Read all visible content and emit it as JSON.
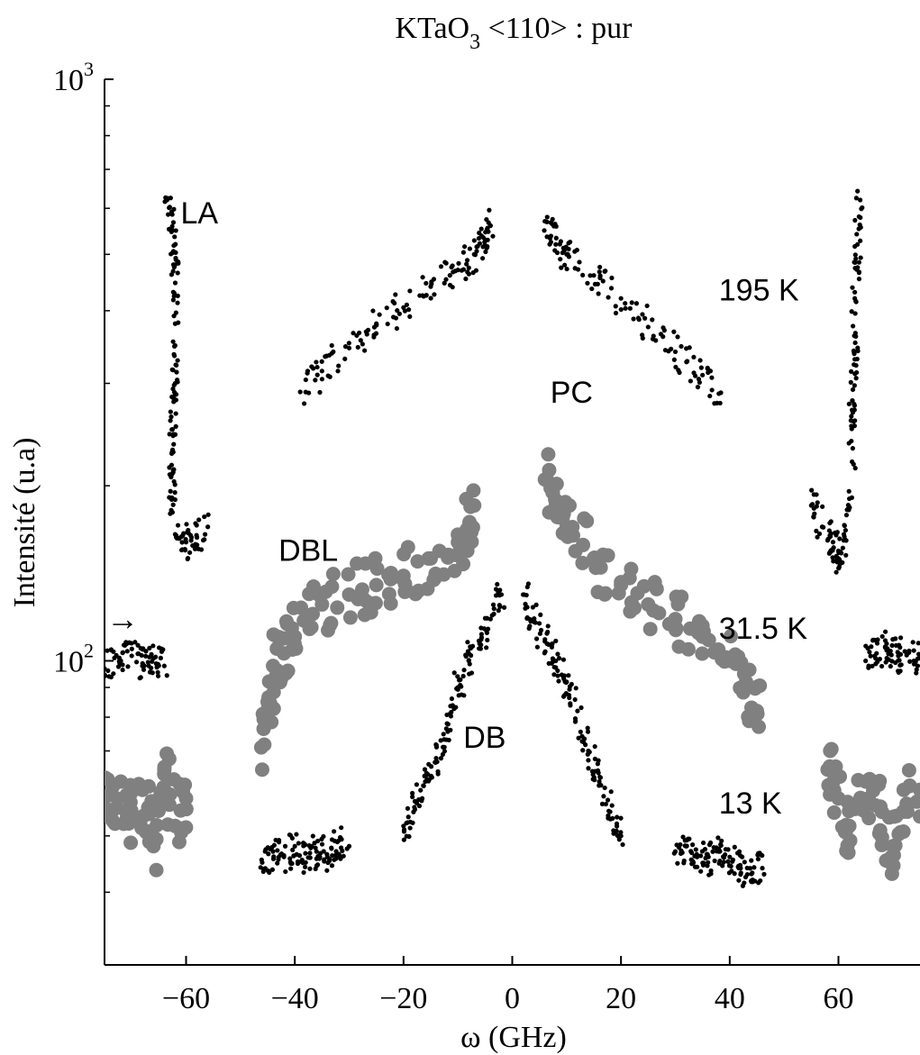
{
  "chart_data": {
    "type": "scatter",
    "title": "KTaO",
    "title_sub": "3",
    "title_rest": " <110> : pur",
    "xlabel": "ω (GHz)",
    "ylabel": "Intensité (u.a)",
    "xlim": [
      -75,
      75
    ],
    "ylim": [
      30,
      1000
    ],
    "yscale": "log",
    "grid": false,
    "xticks": [
      -60,
      -40,
      -20,
      0,
      20,
      40,
      60
    ],
    "xtick_labels": [
      "−60",
      "−40",
      "−20",
      "0",
      "20",
      "40",
      "60"
    ],
    "yticks": [
      100,
      1000
    ],
    "ytick_labels": [
      {
        "base": "10",
        "exp": "2"
      },
      {
        "base": "10",
        "exp": "3"
      }
    ],
    "annotations": [
      {
        "text": "LA",
        "x": -61,
        "y": 590
      },
      {
        "text": "195 K",
        "x": 38,
        "y": 435
      },
      {
        "text": "PC",
        "x": 7,
        "y": 290
      },
      {
        "text": "DBL",
        "x": -43,
        "y": 155
      },
      {
        "text": "31.5 K",
        "x": 38,
        "y": 114
      },
      {
        "text": "DB",
        "x": -9,
        "y": 74
      },
      {
        "text": "13 K",
        "x": 38,
        "y": 57
      },
      {
        "text": "→",
        "x": -75,
        "y": 118
      }
    ],
    "series": [
      {
        "label": "195 K",
        "marker": "small-dot",
        "color": "#000000",
        "segments": [
          {
            "x": [
              -63.5,
              -62.5,
              -62.0,
              -62.0,
              -62.0,
              -62.5,
              -62.5,
              -62.5
            ],
            "y": [
              620,
              550,
              480,
              380,
              300,
              250,
              210,
              180
            ]
          },
          {
            "x": [
              -62.0,
              -60.0,
              -58.0,
              -56.0
            ],
            "y": [
              165,
              160,
              163,
              170
            ]
          },
          {
            "x": [
              -39,
              -35,
              -30,
              -25,
              -20,
              -15,
              -10,
              -7,
              -5,
              -4
            ],
            "y": [
              290,
              315,
              345,
              380,
              405,
              440,
              470,
              500,
              530,
              560
            ]
          },
          {
            "x": [
              6,
              8,
              10,
              15,
              20,
              25,
              30,
              35,
              38
            ],
            "y": [
              570,
              520,
              500,
              460,
              420,
              375,
              340,
              310,
              288
            ]
          },
          {
            "x": [
              55,
              57,
              59,
              60,
              61,
              62
            ],
            "y": [
              185,
              170,
              160,
              150,
              165,
              190
            ]
          },
          {
            "x": [
              62.5,
              62.5,
              63.0,
              63.0,
              63.5,
              64.0
            ],
            "y": [
              220,
              270,
              330,
              420,
              520,
              620
            ]
          }
        ]
      },
      {
        "label": "31.5 K",
        "marker": "large-dot",
        "color": "#808080",
        "segments": [
          {
            "x": [
              -75,
              -72,
              -70,
              -68,
              -66,
              -64,
              -62,
              -60
            ],
            "y": [
              56,
              62,
              54,
              60,
              48,
              65,
              52,
              58
            ]
          },
          {
            "x": [
              -46,
              -45,
              -44,
              -42,
              -40,
              -35,
              -30,
              -25,
              -20,
              -15,
              -10,
              -8,
              -7
            ],
            "y": [
              65,
              85,
              98,
              103,
              110,
              125,
              130,
              135,
              140,
              150,
              160,
              170,
              185
            ]
          },
          {
            "x": [
              6,
              8,
              10,
              15,
              20,
              25,
              30,
              35,
              40,
              43,
              45
            ],
            "y": [
              205,
              185,
              170,
              150,
              135,
              125,
              118,
              110,
              100,
              92,
              82
            ]
          },
          {
            "x": [
              58,
              60,
              62,
              65,
              68,
              70,
              72,
              75
            ],
            "y": [
              65,
              58,
              52,
              62,
              55,
              48,
              60,
              54
            ]
          }
        ]
      },
      {
        "label": "13 K",
        "marker": "small-dot",
        "color": "#000000",
        "segments": [
          {
            "x": [
              -75,
              -72,
              -70,
              -68,
              -66,
              -64
            ],
            "y": [
              97,
              100,
              102,
              99,
              101,
              98
            ]
          },
          {
            "x": [
              -46,
              -44,
              -42,
              -40,
              -38,
              -36,
              -34,
              -32,
              -30
            ],
            "y": [
              45,
              47,
              46,
              48,
              45,
              47,
              46,
              49,
              48
            ]
          },
          {
            "x": [
              -20,
              -18,
              -16,
              -14,
              -12,
              -10,
              -8,
              -6,
              -4,
              -2
            ],
            "y": [
              52,
              56,
              62,
              68,
              78,
              90,
              100,
              108,
              118,
              130
            ]
          },
          {
            "x": [
              2,
              4,
              6,
              8,
              10,
              12,
              14,
              16,
              18,
              20
            ],
            "y": [
              130,
              118,
              108,
              100,
              92,
              82,
              70,
              62,
              55,
              50
            ]
          },
          {
            "x": [
              30,
              32,
              34,
              36,
              38,
              40,
              42,
              44,
              46
            ],
            "y": [
              47,
              48,
              46,
              45,
              47,
              46,
              44,
              43,
              44
            ]
          },
          {
            "x": [
              65,
              67,
              69,
              71,
              73,
              75
            ],
            "y": [
              100,
              103,
              105,
              102,
              104,
              101
            ]
          }
        ]
      }
    ]
  }
}
